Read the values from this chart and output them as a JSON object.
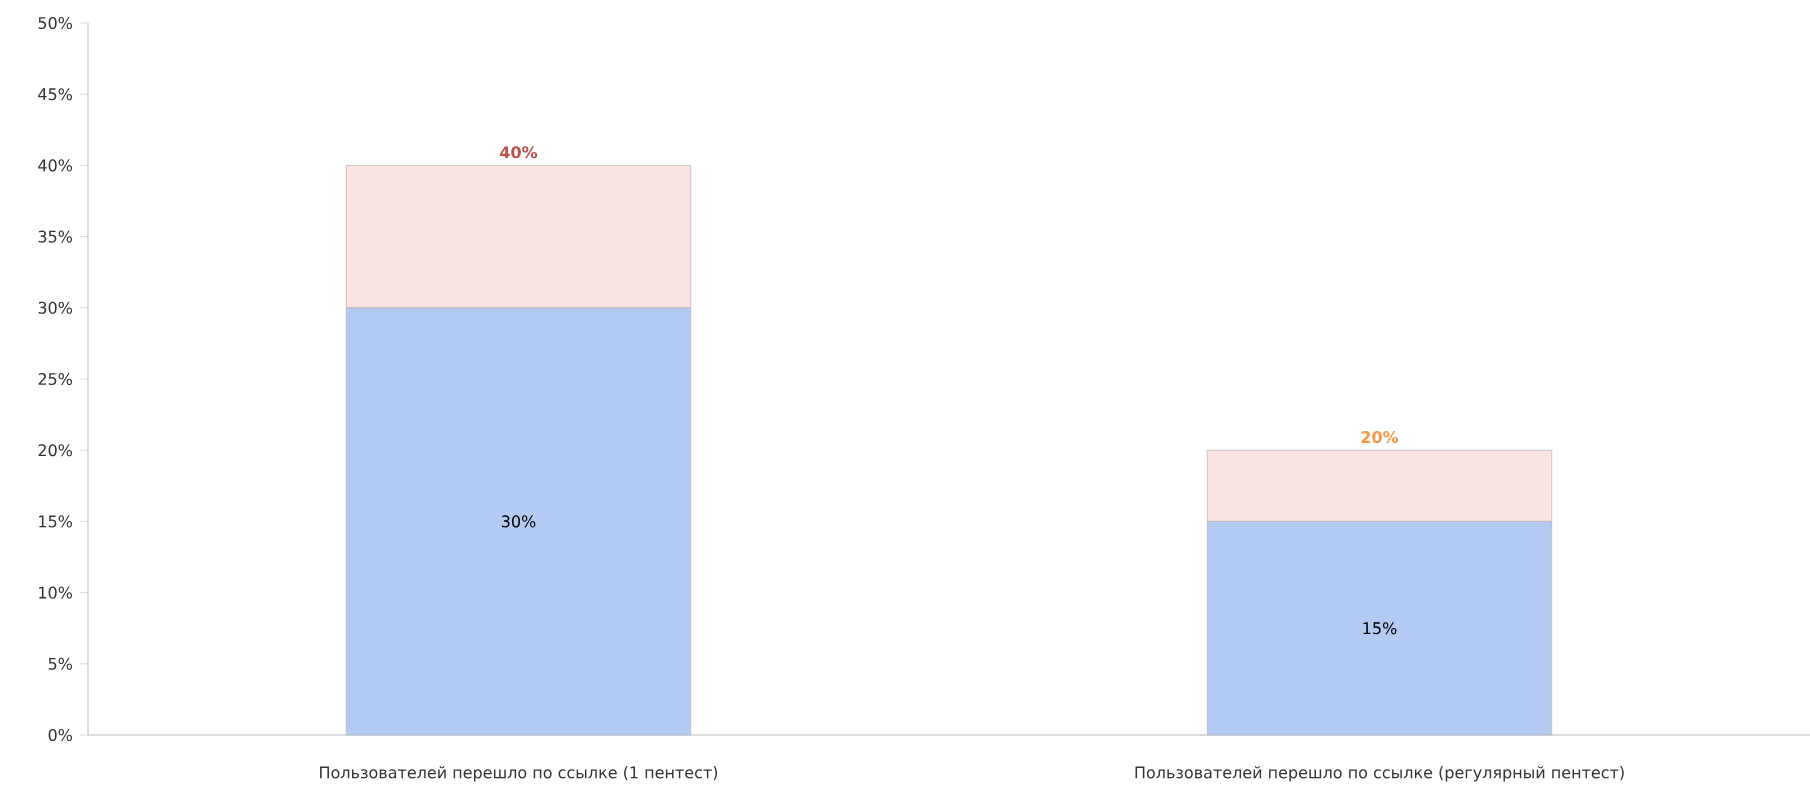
{
  "chart_data": {
    "type": "bar",
    "stacked": true,
    "categories": [
      "Пользователей перешло по ссылке (1 пентест)",
      "Пользователей перешло по ссылке (регулярный пентест)"
    ],
    "series": [
      {
        "color": "#b3caf2",
        "values": [
          30,
          15
        ],
        "value_labels": [
          "30%",
          "15%"
        ]
      },
      {
        "color": "#fde4e4",
        "values": [
          10,
          5
        ]
      }
    ],
    "totals": [
      "40%",
      "20%"
    ],
    "ylim": [
      0,
      50
    ],
    "yticks": [
      {
        "value": 0,
        "label": "0%"
      },
      {
        "value": 5,
        "label": "5%"
      },
      {
        "value": 10,
        "label": "10%"
      },
      {
        "value": 15,
        "label": "15%"
      },
      {
        "value": 20,
        "label": "20%"
      },
      {
        "value": 25,
        "label": "25%"
      },
      {
        "value": 30,
        "label": "30%"
      },
      {
        "value": 35,
        "label": "35%"
      },
      {
        "value": 40,
        "label": "40%"
      },
      {
        "value": 45,
        "label": "45%"
      },
      {
        "value": 50,
        "label": "50%"
      }
    ]
  }
}
